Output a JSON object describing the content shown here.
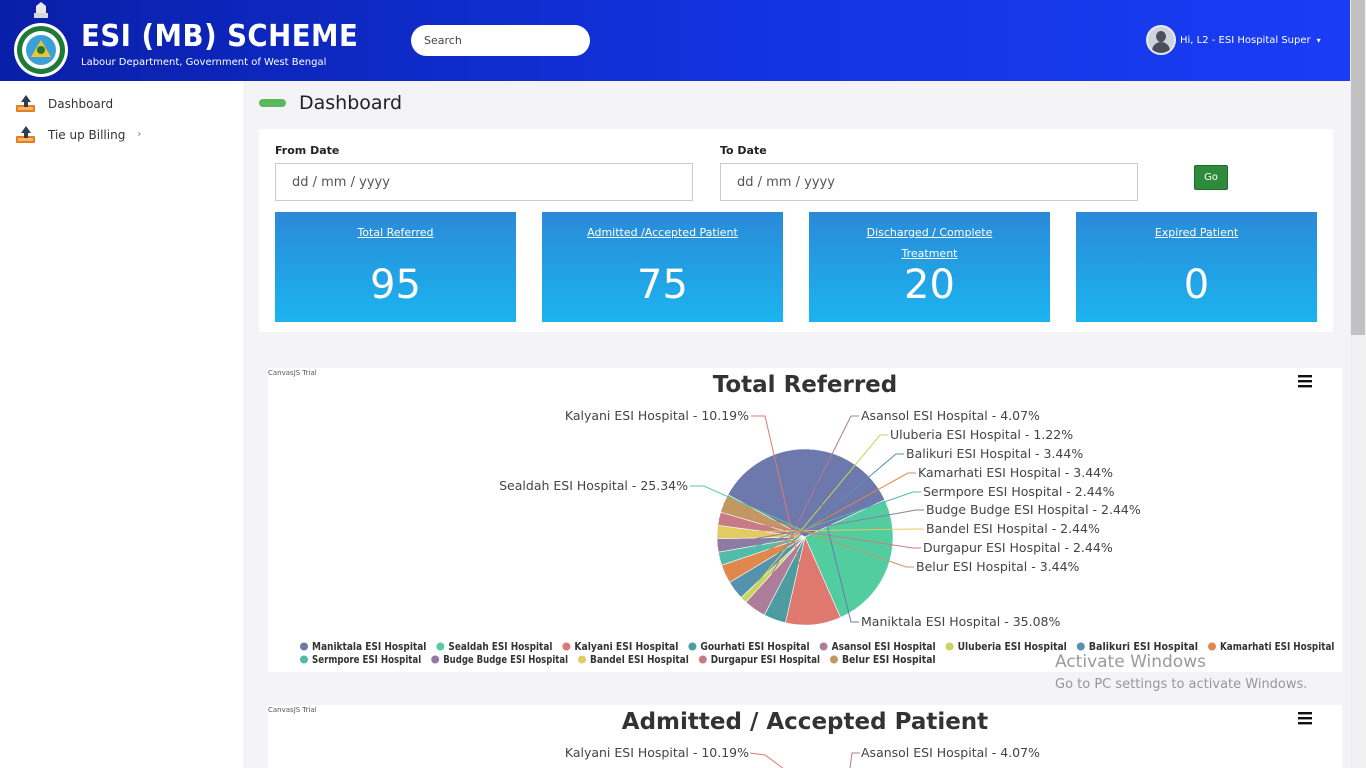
{
  "header": {
    "title": "ESI (MB) SCHEME",
    "subtitle": "Labour Department, Government of West Bengal",
    "search_placeholder": "Search",
    "user_label": "Hi, L2 - ESI Hospital Super"
  },
  "sidebar": {
    "items": [
      {
        "label": "Dashboard",
        "icon": "upload-tray-icon"
      },
      {
        "label": "Tie up Billing",
        "icon": "upload-tray-icon",
        "has_submenu": true
      }
    ]
  },
  "page": {
    "title": "Dashboard"
  },
  "filters": {
    "from_label": "From Date",
    "from_placeholder": "dd / mm / yyyy",
    "to_label": "To Date",
    "to_placeholder": "dd / mm / yyyy",
    "go_label": "Go"
  },
  "stats": [
    {
      "label": "Total Referred",
      "value": "95"
    },
    {
      "label": "Admitted /Accepted Patient",
      "value": "75"
    },
    {
      "label": "Discharged / Complete Treatment",
      "value": "20"
    },
    {
      "label": "Expired Patient",
      "value": "0"
    }
  ],
  "watermark": {
    "line1": "Activate Windows",
    "line2": "Go to PC settings to activate Windows."
  },
  "chart_data": [
    {
      "type": "pie",
      "title": "Total Referred",
      "credit": "CanvasJS Trial",
      "legend_placement": "bottom",
      "slices": [
        {
          "label": "Maniktala ESI Hospital",
          "value": 35.08,
          "color": "#6d78ad"
        },
        {
          "label": "Sealdah ESI Hospital",
          "value": 25.34,
          "color": "#51cda0"
        },
        {
          "label": "Kalyani ESI Hospital",
          "value": 10.19,
          "color": "#df7970"
        },
        {
          "label": "Gourhati ESI Hospital",
          "value": 4.07,
          "color": "#4c9ca0"
        },
        {
          "label": "Asansol ESI Hospital",
          "value": 4.07,
          "color": "#ae7d99"
        },
        {
          "label": "Uluberia ESI Hospital",
          "value": 1.22,
          "color": "#c9d45c"
        },
        {
          "label": "Balikuri ESI Hospital",
          "value": 3.44,
          "color": "#5592ad"
        },
        {
          "label": "Kamarhati ESI Hospital",
          "value": 3.44,
          "color": "#df874d"
        },
        {
          "label": "Sermpore ESI Hospital",
          "value": 2.44,
          "color": "#52bca8"
        },
        {
          "label": "Budge Budge ESI Hospital",
          "value": 2.44,
          "color": "#8e7aa3"
        },
        {
          "label": "Bandel ESI Hospital",
          "value": 2.44,
          "color": "#e3cb64"
        },
        {
          "label": "Durgapur ESI Hospital",
          "value": 2.44,
          "color": "#c77b85"
        },
        {
          "label": "Belur ESI Hospital",
          "value": 3.44,
          "color": "#c39762"
        }
      ],
      "visible_labels": [
        "Kalyani ESI Hospital - 10.19%",
        "Sealdah ESI Hospital - 25.34%",
        "Asansol ESI Hospital - 4.07%",
        "Uluberia ESI Hospital - 1.22%",
        "Balikuri ESI Hospital - 3.44%",
        "Kamarhati ESI Hospital - 3.44%",
        "Sermpore ESI Hospital - 2.44%",
        "Budge Budge ESI Hospital - 2.44%",
        "Bandel ESI Hospital - 2.44%",
        "Durgapur ESI Hospital - 2.44%",
        "Belur ESI Hospital - 3.44%",
        "Maniktala ESI Hospital - 35.08%"
      ]
    },
    {
      "type": "pie",
      "title": "Admitted / Accepted Patient",
      "credit": "CanvasJS Trial",
      "visible_labels": [
        "Kalyani ESI Hospital - 10.19%",
        "Asansol ESI Hospital - 4.07%"
      ]
    }
  ]
}
